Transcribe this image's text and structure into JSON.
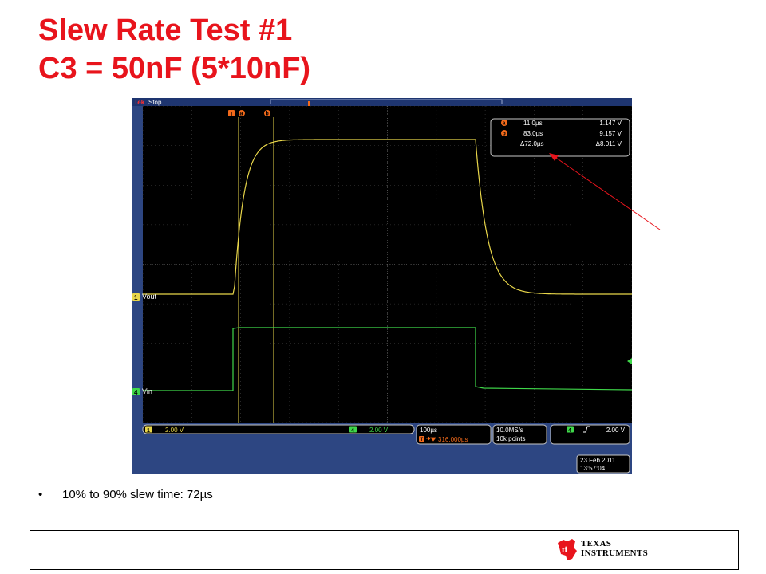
{
  "slide": {
    "title_line1": "Slew Rate Test #1",
    "title_line2": "C3 = 50nF (5*10nF)",
    "bullet": "10% to 90% slew time: 72µs"
  },
  "scope": {
    "brand": "Tek",
    "run_state": "Stop",
    "trigger_marker": "T",
    "cursor_a_marker": "a",
    "cursor_b_marker": "b",
    "cursor_readout": {
      "a_label": "a",
      "b_label": "b",
      "a_time": "11.0µs",
      "a_volt": "1.147 V",
      "b_time": "83.0µs",
      "b_volt": "9.157 V",
      "delta_time": "Δ72.0µs",
      "delta_volt": "Δ8.011 V"
    },
    "channels": [
      {
        "number": "1",
        "label": "Vout",
        "scale": "2.00 V",
        "color": "#e8d64a"
      },
      {
        "number": "4",
        "label": "Vin",
        "scale": "2.00 V",
        "color": "#3fd84a"
      }
    ],
    "timebase": {
      "scale": "100µs",
      "trigger_pos_icon": "T",
      "trigger_pos": "316.000µs"
    },
    "acquisition": {
      "rate": "10.0MS/s",
      "points": "10k points"
    },
    "trigger": {
      "channel": "4",
      "slope_icon": "rising-edge-icon",
      "level": "2.00 V"
    },
    "date": "23 Feb  2011",
    "time": "13:57:04"
  },
  "footer": {
    "logo_line1": "Texas",
    "logo_line2": "Instruments"
  },
  "colors": {
    "title": "#e8141c",
    "scope_frame": "#2d4682",
    "scope_screen": "#000000",
    "cursor_orange": "#f26a1b",
    "arrow": "#e8141c"
  }
}
